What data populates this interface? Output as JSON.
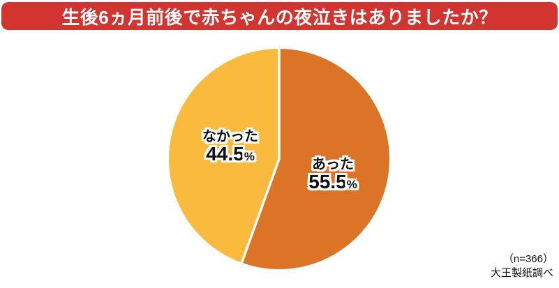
{
  "title": "生後6ヵ月前後で赤ちゃんの夜泣きはありましたか？",
  "banner_color": "#D2342F",
  "footnote": {
    "sample_size": "（n=366）",
    "source": "大王製紙調べ"
  },
  "chart_data": {
    "type": "pie",
    "title": "生後6ヵ月前後で赤ちゃんの夜泣きはありましたか？",
    "direction": "clockwise",
    "start_angle_deg": 0,
    "divider_color": "#ffffff",
    "background": "#ffffff",
    "legend_position": "none",
    "labels_inside": true,
    "slices": [
      {
        "label": "あった",
        "value": 55.5,
        "display_value": "55.5",
        "percent_sign": "%",
        "color": "#DC7428"
      },
      {
        "label": "なかった",
        "value": 44.5,
        "display_value": "44.5",
        "percent_sign": "%",
        "color": "#F9BA3E"
      }
    ]
  }
}
